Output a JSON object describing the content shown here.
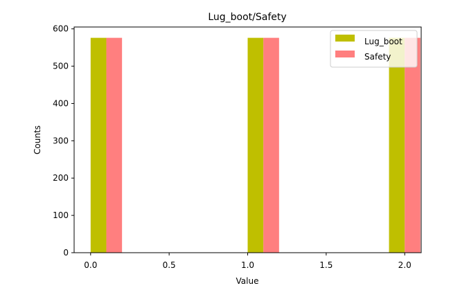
{
  "chart_data": {
    "type": "bar",
    "title": "Lug_boot/Safety",
    "xlabel": "Value",
    "ylabel": "Counts",
    "xlim": [
      -0.105,
      2.105
    ],
    "ylim": [
      0,
      605
    ],
    "x_ticks": [
      0.0,
      0.5,
      1.0,
      1.5,
      2.0
    ],
    "x_tick_labels": [
      "0.0",
      "0.5",
      "1.0",
      "1.5",
      "2.0"
    ],
    "y_ticks": [
      0,
      100,
      200,
      300,
      400,
      500,
      600
    ],
    "y_tick_labels": [
      "0",
      "100",
      "200",
      "300",
      "400",
      "500",
      "600"
    ],
    "grid": false,
    "legend_position": "upper right",
    "series": [
      {
        "name": "Lug_boot",
        "color": "#bfbf00",
        "bars": [
          {
            "x_start": 0.0,
            "x_end": 0.1,
            "value": 576
          },
          {
            "x_start": 1.0,
            "x_end": 1.1,
            "value": 576
          },
          {
            "x_start": 1.9,
            "x_end": 2.0,
            "value": 576
          }
        ]
      },
      {
        "name": "Safety",
        "color": "#ff7f7f",
        "bars": [
          {
            "x_start": 0.1,
            "x_end": 0.2,
            "value": 576
          },
          {
            "x_start": 1.1,
            "x_end": 1.2,
            "value": 576
          },
          {
            "x_start": 2.0,
            "x_end": 2.1,
            "value": 576
          }
        ]
      }
    ]
  }
}
